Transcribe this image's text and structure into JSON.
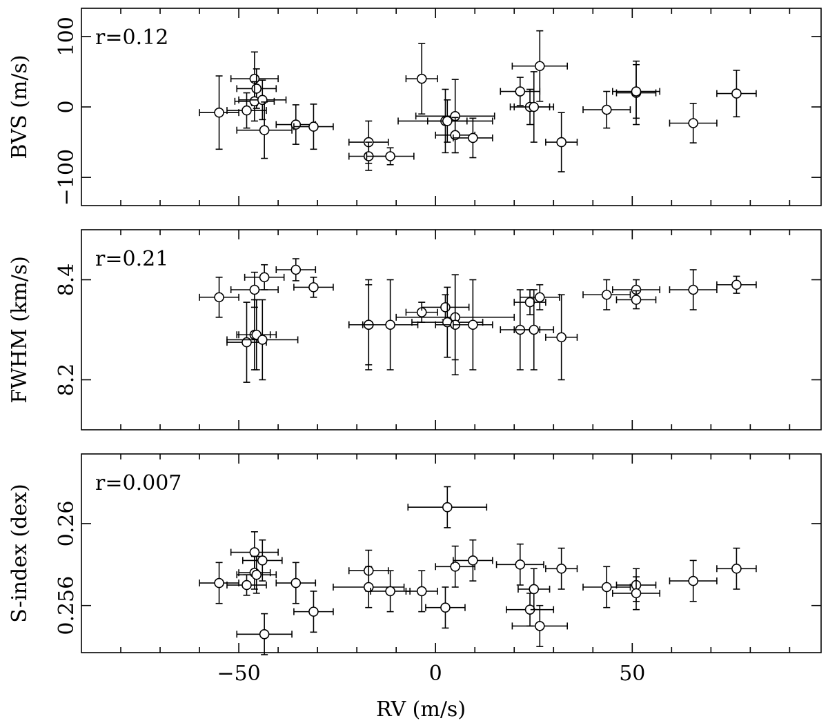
{
  "chart_data": {
    "type": "scatter",
    "xlabel": "RV (m/s)",
    "xlim": [
      -90,
      98
    ],
    "x_ticks": [
      -50,
      0,
      50
    ],
    "x_tick_labels": [
      "−50",
      "0",
      "50"
    ],
    "panels": [
      {
        "id": "bvs",
        "ylabel": "BVS (m/s)",
        "ylim": [
          -140,
          140
        ],
        "y_ticks": [
          -100,
          0,
          100
        ],
        "y_tick_labels": [
          "−100",
          "0",
          "100"
        ],
        "annotation": "r=0.12",
        "points": [
          {
            "x": -55,
            "y": -8,
            "xerr": 5,
            "yerr": 52
          },
          {
            "x": -48,
            "y": -5,
            "xerr": 5,
            "yerr": 25
          },
          {
            "x": -46,
            "y": 40,
            "xerr": 6,
            "yerr": 38
          },
          {
            "x": -45.5,
            "y": 26,
            "xerr": 5,
            "yerr": 28
          },
          {
            "x": -46,
            "y": 8,
            "xerr": 5,
            "yerr": 28
          },
          {
            "x": -44,
            "y": 10,
            "xerr": 6,
            "yerr": 28
          },
          {
            "x": -43.5,
            "y": -33,
            "xerr": 7,
            "yerr": 40
          },
          {
            "x": -35.5,
            "y": -25,
            "xerr": 5,
            "yerr": 28
          },
          {
            "x": -31,
            "y": -28,
            "xerr": 5,
            "yerr": 32
          },
          {
            "x": -17,
            "y": -50,
            "xerr": 5,
            "yerr": 30
          },
          {
            "x": -17,
            "y": -70,
            "xerr": 5,
            "yerr": 20
          },
          {
            "x": -11.5,
            "y": -70,
            "xerr": 6,
            "yerr": 12
          },
          {
            "x": -3.5,
            "y": 40,
            "xerr": 4,
            "yerr": 50
          },
          {
            "x": 2.5,
            "y": -20,
            "xerr": 12,
            "yerr": 45
          },
          {
            "x": 3,
            "y": -20,
            "xerr": 5,
            "yerr": 30
          },
          {
            "x": 5,
            "y": -13,
            "xerr": 10,
            "yerr": 52
          },
          {
            "x": 5,
            "y": -40,
            "xerr": 5,
            "yerr": 25
          },
          {
            "x": 9.5,
            "y": -44,
            "xerr": 5,
            "yerr": 28
          },
          {
            "x": 21.5,
            "y": 22,
            "xerr": 5,
            "yerr": 20
          },
          {
            "x": 26.5,
            "y": 58,
            "xerr": 7,
            "yerr": 50
          },
          {
            "x": 24,
            "y": 0,
            "xerr": 5,
            "yerr": 25
          },
          {
            "x": 25,
            "y": 0,
            "xerr": 5,
            "yerr": 50
          },
          {
            "x": 32,
            "y": -50,
            "xerr": 4,
            "yerr": 42
          },
          {
            "x": 43.5,
            "y": -4,
            "xerr": 6,
            "yerr": 26
          },
          {
            "x": 51,
            "y": 20,
            "xerr": 5,
            "yerr": 45
          },
          {
            "x": 51,
            "y": 22,
            "xerr": 6,
            "yerr": 38
          },
          {
            "x": 65.5,
            "y": -23,
            "xerr": 6,
            "yerr": 28
          },
          {
            "x": 76.5,
            "y": 19,
            "xerr": 5,
            "yerr": 33
          }
        ]
      },
      {
        "id": "fwhm",
        "ylabel": "FWHM (km/s)",
        "ylim": [
          8.1,
          8.5
        ],
        "y_ticks": [
          8.2,
          8.4
        ],
        "y_tick_labels": [
          "8.2",
          "8.4"
        ],
        "annotation": "r=0.21",
        "points": [
          {
            "x": -55,
            "y": 8.365,
            "xerr": 5,
            "yerr": 0.04
          },
          {
            "x": -48,
            "y": 8.275,
            "xerr": 5,
            "yerr": 0.08
          },
          {
            "x": -46,
            "y": 8.38,
            "xerr": 6,
            "yerr": 0.035
          },
          {
            "x": -46,
            "y": 8.29,
            "xerr": 4,
            "yerr": 0.07
          },
          {
            "x": -45.5,
            "y": 8.29,
            "xerr": 5,
            "yerr": 0.07
          },
          {
            "x": -44,
            "y": 8.28,
            "xerr": 9,
            "yerr": 0.08
          },
          {
            "x": -43.5,
            "y": 8.405,
            "xerr": 5,
            "yerr": 0.025
          },
          {
            "x": -35.5,
            "y": 8.42,
            "xerr": 5,
            "yerr": 0.022
          },
          {
            "x": -31,
            "y": 8.385,
            "xerr": 5,
            "yerr": 0.02
          },
          {
            "x": -17,
            "y": 8.31,
            "xerr": 5,
            "yerr": 0.09
          },
          {
            "x": -17,
            "y": 8.31,
            "xerr": 5,
            "yerr": 0.08
          },
          {
            "x": -11.5,
            "y": 8.31,
            "xerr": 7,
            "yerr": 0.09
          },
          {
            "x": -3.5,
            "y": 8.335,
            "xerr": 4,
            "yerr": 0.02
          },
          {
            "x": 2.5,
            "y": 8.345,
            "xerr": 6,
            "yerr": 0.025
          },
          {
            "x": 3,
            "y": 8.315,
            "xerr": 9,
            "yerr": 0.07
          },
          {
            "x": 5,
            "y": 8.325,
            "xerr": 15,
            "yerr": 0.085
          },
          {
            "x": 5,
            "y": 8.31,
            "xerr": 5,
            "yerr": 0.1
          },
          {
            "x": 9.5,
            "y": 8.31,
            "xerr": 5,
            "yerr": 0.09
          },
          {
            "x": 21.5,
            "y": 8.3,
            "xerr": 5,
            "yerr": 0.08
          },
          {
            "x": 24,
            "y": 8.355,
            "xerr": 4,
            "yerr": 0.025
          },
          {
            "x": 25,
            "y": 8.3,
            "xerr": 5,
            "yerr": 0.08
          },
          {
            "x": 26.5,
            "y": 8.365,
            "xerr": 5,
            "yerr": 0.025
          },
          {
            "x": 32,
            "y": 8.285,
            "xerr": 4,
            "yerr": 0.085
          },
          {
            "x": 43.5,
            "y": 8.37,
            "xerr": 6,
            "yerr": 0.03
          },
          {
            "x": 51,
            "y": 8.38,
            "xerr": 6,
            "yerr": 0.02
          },
          {
            "x": 51,
            "y": 8.36,
            "xerr": 5,
            "yerr": 0.018
          },
          {
            "x": 65.5,
            "y": 8.38,
            "xerr": 6,
            "yerr": 0.04
          },
          {
            "x": 76.5,
            "y": 8.39,
            "xerr": 5,
            "yerr": 0.017
          }
        ]
      },
      {
        "id": "sindex",
        "ylabel": "S-index (dex)",
        "ylim": [
          0.2537,
          0.2634
        ],
        "y_ticks": [
          0.256,
          0.26
        ],
        "y_tick_labels": [
          "0.256",
          "0.26"
        ],
        "annotation": "r=0.007",
        "points": [
          {
            "x": -55,
            "y": 0.2571,
            "xerr": 5,
            "yerr": 0.001
          },
          {
            "x": -48,
            "y": 0.257,
            "xerr": 5,
            "yerr": 0.0005
          },
          {
            "x": -46,
            "y": 0.2586,
            "xerr": 6,
            "yerr": 0.001
          },
          {
            "x": -46,
            "y": 0.2576,
            "xerr": 4,
            "yerr": 0.0008
          },
          {
            "x": -45.5,
            "y": 0.2575,
            "xerr": 5,
            "yerr": 0.0009
          },
          {
            "x": -44,
            "y": 0.2582,
            "xerr": 5,
            "yerr": 0.001
          },
          {
            "x": -43.5,
            "y": 0.2546,
            "xerr": 7,
            "yerr": 0.001
          },
          {
            "x": -35.5,
            "y": 0.2571,
            "xerr": 5,
            "yerr": 0.001
          },
          {
            "x": -31,
            "y": 0.2557,
            "xerr": 5,
            "yerr": 0.001
          },
          {
            "x": -17,
            "y": 0.2577,
            "xerr": 5,
            "yerr": 0.001
          },
          {
            "x": -17,
            "y": 0.2569,
            "xerr": 9,
            "yerr": 0.001
          },
          {
            "x": -11.5,
            "y": 0.2567,
            "xerr": 5,
            "yerr": 0.001
          },
          {
            "x": -3.5,
            "y": 0.2567,
            "xerr": 4,
            "yerr": 0.001
          },
          {
            "x": 2.5,
            "y": 0.2559,
            "xerr": 5,
            "yerr": 0.001
          },
          {
            "x": 3,
            "y": 0.2608,
            "xerr": 10,
            "yerr": 0.001
          },
          {
            "x": 5,
            "y": 0.2579,
            "xerr": 5,
            "yerr": 0.001
          },
          {
            "x": 9.5,
            "y": 0.2582,
            "xerr": 5,
            "yerr": 0.001
          },
          {
            "x": 21.5,
            "y": 0.258,
            "xerr": 6,
            "yerr": 0.001
          },
          {
            "x": 24,
            "y": 0.2558,
            "xerr": 6,
            "yerr": 0.0008
          },
          {
            "x": 25,
            "y": 0.2568,
            "xerr": 4,
            "yerr": 0.001
          },
          {
            "x": 26.5,
            "y": 0.255,
            "xerr": 7,
            "yerr": 0.001
          },
          {
            "x": 32,
            "y": 0.2578,
            "xerr": 4,
            "yerr": 0.001
          },
          {
            "x": 43.5,
            "y": 0.2569,
            "xerr": 6,
            "yerr": 0.001
          },
          {
            "x": 51,
            "y": 0.257,
            "xerr": 5,
            "yerr": 0.0008
          },
          {
            "x": 51,
            "y": 0.2566,
            "xerr": 6,
            "yerr": 0.0008
          },
          {
            "x": 65.5,
            "y": 0.2572,
            "xerr": 6,
            "yerr": 0.001
          },
          {
            "x": 76.5,
            "y": 0.2578,
            "xerr": 5,
            "yerr": 0.001
          }
        ]
      }
    ]
  }
}
